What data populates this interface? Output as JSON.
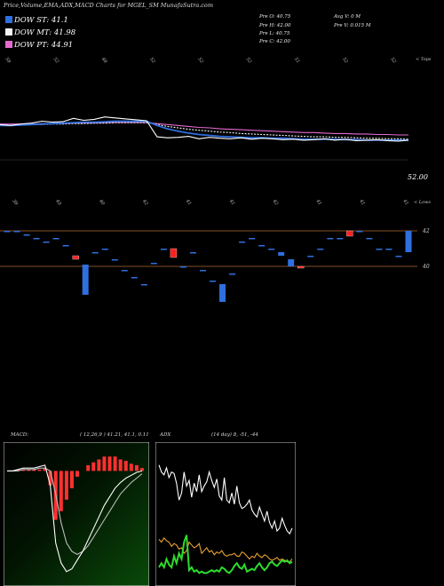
{
  "header": {
    "title": "Price,Volume,EMA,ADX,MACD Charts for MGEL_SM MunafaSutra.com",
    "legend": [
      {
        "label": "DOW ST: 41.1",
        "color": "#2f6fdf"
      },
      {
        "label": "DOW MT: 41.98",
        "color": "#f4f4f4"
      },
      {
        "label": "DOW PT: 44.91",
        "color": "#e46ad0"
      }
    ],
    "ohlc": [
      [
        "Pre  O: 40.75",
        "Avg V: 0  M"
      ],
      [
        "Pre  H: 42.00",
        "Pre  V: 0.015 M"
      ],
      [
        "Pre  L: 40.75",
        ""
      ],
      [
        "Pre  C: 42.00",
        ""
      ]
    ]
  },
  "chart_data": [
    {
      "type": "line",
      "name": "price-ema",
      "ylim": [
        45,
        60
      ],
      "last_price_label": "52.00",
      "corner_label": "< Tops",
      "top_ticks": [
        "59",
        "52",
        "48",
        "52",
        "52",
        "52",
        "51",
        "52",
        "52"
      ],
      "series": [
        {
          "name": "price",
          "color": "#ffffff",
          "values": [
            56.2,
            56.0,
            56.3,
            56.5,
            56.9,
            56.7,
            56.8,
            57.5,
            57.1,
            57.3,
            57.8,
            57.6,
            57.4,
            57.2,
            57.0,
            53.6,
            53.4,
            53.5,
            53.7,
            53.2,
            53.5,
            53.3,
            53.2,
            53.4,
            53.1,
            53.3,
            53.2,
            53.0,
            53.1,
            52.9,
            53.0,
            53.2,
            52.9,
            53.1,
            52.8,
            52.9,
            53.0,
            52.8,
            52.7,
            52.9
          ]
        },
        {
          "name": "ema-short",
          "color": "#2f6fdf",
          "values": [
            56.0,
            56.0,
            56.1,
            56.2,
            56.3,
            56.4,
            56.5,
            56.6,
            56.7,
            56.7,
            56.8,
            56.9,
            56.9,
            56.9,
            56.9,
            56.0,
            55.3,
            54.8,
            54.4,
            54.1,
            53.9,
            53.7,
            53.6,
            53.5,
            53.4,
            53.4,
            53.3,
            53.3,
            53.2,
            53.1,
            53.1,
            53.1,
            53.1,
            53.0,
            53.0,
            52.9,
            52.9,
            52.9,
            52.9,
            52.9
          ]
        },
        {
          "name": "ema-mid",
          "color": "#f4f4f4",
          "values": [
            56.1,
            56.1,
            56.1,
            56.2,
            56.2,
            56.3,
            56.3,
            56.4,
            56.4,
            56.5,
            56.5,
            56.6,
            56.6,
            56.6,
            56.6,
            56.2,
            55.8,
            55.5,
            55.2,
            55.0,
            54.8,
            54.6,
            54.5,
            54.3,
            54.2,
            54.1,
            54.0,
            53.9,
            53.8,
            53.7,
            53.6,
            53.6,
            53.5,
            53.5,
            53.4,
            53.3,
            53.3,
            53.2,
            53.2,
            53.1
          ]
        },
        {
          "name": "ema-long",
          "color": "#e46ad0",
          "values": [
            56.3,
            56.3,
            56.3,
            56.3,
            56.4,
            56.4,
            56.4,
            56.5,
            56.5,
            56.5,
            56.6,
            56.6,
            56.6,
            56.6,
            56.6,
            56.4,
            56.2,
            56.0,
            55.8,
            55.6,
            55.5,
            55.3,
            55.2,
            55.1,
            55.0,
            54.9,
            54.8,
            54.7,
            54.6,
            54.5,
            54.5,
            54.4,
            54.3,
            54.3,
            54.2,
            54.2,
            54.1,
            54.1,
            54.0,
            54.0
          ]
        }
      ]
    },
    {
      "type": "bar",
      "name": "candles",
      "ylim": [
        36,
        44
      ],
      "levels": [
        {
          "value": 42,
          "label": "42"
        },
        {
          "value": 40,
          "label": "40"
        }
      ],
      "corner_label": "< Lows",
      "top_ticks": [
        "39",
        "43",
        "40",
        "42",
        "41",
        "41",
        "42",
        "41",
        "41",
        "41"
      ],
      "candles": [
        {
          "open": 42.0,
          "close": 42.0,
          "dir": "flat"
        },
        {
          "open": 42.0,
          "close": 42.0,
          "dir": "flat"
        },
        {
          "open": 41.8,
          "close": 41.8,
          "dir": "flat"
        },
        {
          "open": 41.6,
          "close": 41.6,
          "dir": "flat"
        },
        {
          "open": 41.4,
          "close": 41.4,
          "dir": "flat"
        },
        {
          "open": 41.6,
          "close": 41.6,
          "dir": "flat"
        },
        {
          "open": 41.2,
          "close": 41.2,
          "dir": "flat"
        },
        {
          "open": 40.6,
          "close": 40.4,
          "dir": "up"
        },
        {
          "open": 40.1,
          "close": 38.4,
          "dir": "down"
        },
        {
          "open": 40.8,
          "close": 40.8,
          "dir": "flat"
        },
        {
          "open": 41.0,
          "close": 41.0,
          "dir": "flat"
        },
        {
          "open": 40.4,
          "close": 40.4,
          "dir": "flat"
        },
        {
          "open": 39.8,
          "close": 39.8,
          "dir": "flat"
        },
        {
          "open": 39.4,
          "close": 39.4,
          "dir": "flat"
        },
        {
          "open": 39.0,
          "close": 39.0,
          "dir": "flat"
        },
        {
          "open": 40.2,
          "close": 40.2,
          "dir": "flat"
        },
        {
          "open": 41.0,
          "close": 41.0,
          "dir": "flat"
        },
        {
          "open": 40.5,
          "close": 41.0,
          "dir": "up"
        },
        {
          "open": 40.0,
          "close": 40.0,
          "dir": "flat"
        },
        {
          "open": 40.8,
          "close": 40.8,
          "dir": "flat"
        },
        {
          "open": 39.8,
          "close": 39.8,
          "dir": "flat"
        },
        {
          "open": 39.2,
          "close": 39.2,
          "dir": "flat"
        },
        {
          "open": 39.0,
          "close": 38.0,
          "dir": "down"
        },
        {
          "open": 39.6,
          "close": 39.6,
          "dir": "flat"
        },
        {
          "open": 41.4,
          "close": 41.4,
          "dir": "flat"
        },
        {
          "open": 41.6,
          "close": 41.6,
          "dir": "flat"
        },
        {
          "open": 41.2,
          "close": 41.2,
          "dir": "flat"
        },
        {
          "open": 41.0,
          "close": 41.0,
          "dir": "flat"
        },
        {
          "open": 40.8,
          "close": 40.6,
          "dir": "down"
        },
        {
          "open": 40.4,
          "close": 40.0,
          "dir": "down"
        },
        {
          "open": 40.0,
          "close": 39.9,
          "dir": "up"
        },
        {
          "open": 40.6,
          "close": 40.6,
          "dir": "flat"
        },
        {
          "open": 41.0,
          "close": 41.0,
          "dir": "flat"
        },
        {
          "open": 41.6,
          "close": 41.6,
          "dir": "flat"
        },
        {
          "open": 41.6,
          "close": 41.6,
          "dir": "flat"
        },
        {
          "open": 41.7,
          "close": 42.0,
          "dir": "up"
        },
        {
          "open": 42.0,
          "close": 42.0,
          "dir": "flat"
        },
        {
          "open": 41.6,
          "close": 41.6,
          "dir": "flat"
        },
        {
          "open": 41.0,
          "close": 41.0,
          "dir": "flat"
        },
        {
          "open": 41.0,
          "close": 41.0,
          "dir": "flat"
        },
        {
          "open": 40.6,
          "close": 40.6,
          "dir": "flat"
        },
        {
          "open": 42.0,
          "close": 40.8,
          "dir": "down"
        }
      ]
    },
    {
      "type": "line",
      "name": "macd",
      "title": "MACD:",
      "params": "( 12,26,9 ) 41.21, 41.1, 0.11",
      "ylim": [
        -4,
        1
      ],
      "series": [
        {
          "name": "macd",
          "color": "#ffffff",
          "values": [
            0.0,
            0.0,
            0.05,
            0.1,
            0.1,
            0.1,
            0.15,
            0.2,
            -0.5,
            -2.5,
            -3.2,
            -3.5,
            -3.4,
            -3.1,
            -2.8,
            -2.4,
            -2.0,
            -1.6,
            -1.2,
            -0.9,
            -0.6,
            -0.4,
            -0.25,
            -0.15,
            -0.05,
            0.0
          ]
        },
        {
          "name": "signal",
          "color": "#bbbbbb",
          "values": [
            0.0,
            0.0,
            0.0,
            0.05,
            0.05,
            0.05,
            0.1,
            0.1,
            0.0,
            -0.8,
            -1.8,
            -2.5,
            -2.8,
            -2.9,
            -2.8,
            -2.6,
            -2.3,
            -2.0,
            -1.7,
            -1.4,
            -1.1,
            -0.8,
            -0.6,
            -0.4,
            -0.25,
            -0.1
          ]
        },
        {
          "name": "histogram",
          "color": "#ff3030",
          "values": [
            0.0,
            0.0,
            0.05,
            0.05,
            0.05,
            0.05,
            0.05,
            0.1,
            -0.5,
            -1.7,
            -1.4,
            -1.0,
            -0.6,
            -0.2,
            0.0,
            0.2,
            0.3,
            0.4,
            0.5,
            0.5,
            0.5,
            0.4,
            0.35,
            0.25,
            0.2,
            0.1
          ]
        }
      ]
    },
    {
      "type": "line",
      "name": "adx",
      "title": "ADX",
      "params": "(14 day) 8, -51, -44",
      "ylim": [
        0,
        100
      ],
      "series": [
        {
          "name": "adx",
          "color": "#ffffff",
          "values": [
            85,
            80,
            78,
            83,
            76,
            80,
            79,
            72,
            60,
            65,
            80,
            70,
            74,
            62,
            72,
            66,
            78,
            66,
            70,
            73,
            80,
            74,
            69,
            75,
            63,
            60,
            76,
            60,
            58,
            65,
            57,
            70,
            58,
            54,
            55,
            57,
            60,
            53,
            50,
            48,
            55,
            50,
            45,
            52,
            44,
            40,
            45,
            38,
            40,
            47,
            42,
            38,
            36,
            40
          ]
        },
        {
          "name": "di-plus",
          "color": "#e8a030",
          "values": [
            32,
            30,
            33,
            31,
            30,
            27,
            29,
            28,
            25,
            26,
            22,
            24,
            30,
            28,
            26,
            27,
            29,
            22,
            24,
            26,
            23,
            24,
            21,
            23,
            22,
            24,
            21,
            20,
            21,
            21,
            22,
            20,
            20,
            23,
            22,
            20,
            18,
            20,
            19,
            22,
            20,
            19,
            21,
            20,
            18,
            17,
            18,
            19,
            17,
            18,
            17,
            16,
            16,
            18
          ]
        },
        {
          "name": "di-minus",
          "color": "#2ddc2d",
          "values": [
            12,
            15,
            12,
            18,
            14,
            12,
            20,
            15,
            22,
            18,
            30,
            35,
            10,
            12,
            9,
            10,
            8,
            9,
            8,
            8,
            9,
            10,
            9,
            10,
            9,
            12,
            11,
            9,
            8,
            10,
            13,
            15,
            12,
            11,
            14,
            9,
            10,
            11,
            10,
            13,
            15,
            12,
            10,
            12,
            15,
            16,
            14,
            13,
            15,
            17,
            16,
            17,
            15,
            16
          ]
        }
      ]
    }
  ]
}
